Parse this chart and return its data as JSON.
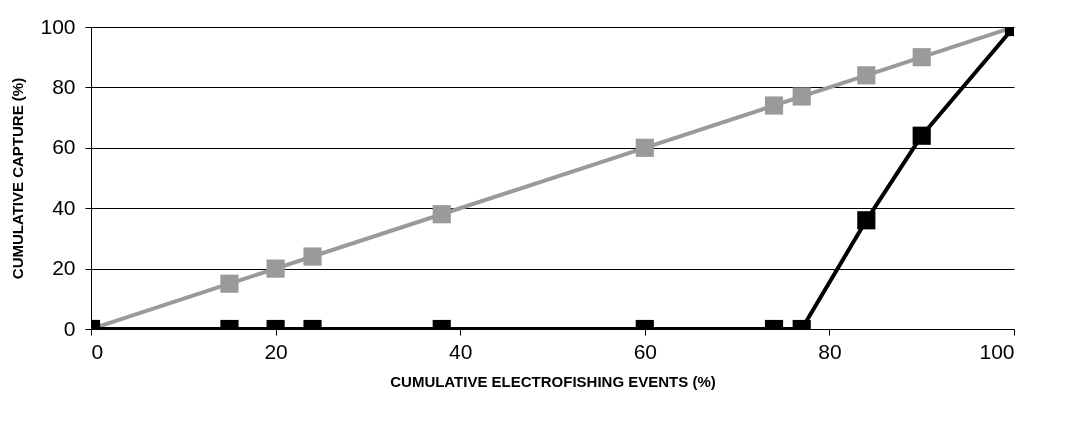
{
  "chart_data": {
    "type": "line",
    "xlabel": "CUMULATIVE ELECTROFISHING EVENTS (%)",
    "ylabel": "CUMULATIVE CAPTURE (%)",
    "x": [
      0,
      15,
      20,
      24,
      38,
      60,
      74,
      77,
      84,
      90,
      100
    ],
    "series": [
      {
        "color": "#9a9a9a",
        "values": [
          0,
          15,
          20,
          24,
          38,
          60,
          74,
          77,
          84,
          90,
          100
        ]
      },
      {
        "color": "#000000",
        "values": [
          0,
          0,
          0,
          0,
          0,
          0,
          0,
          0,
          36,
          64,
          100
        ]
      }
    ],
    "xlim": [
      0,
      100
    ],
    "ylim": [
      0,
      100
    ],
    "xticks": [
      0,
      20,
      40,
      60,
      80,
      100
    ],
    "yticks": [
      0,
      20,
      40,
      60,
      80,
      100
    ],
    "grid": "y",
    "marker": "square",
    "line_style": "solid",
    "legend": false
  }
}
